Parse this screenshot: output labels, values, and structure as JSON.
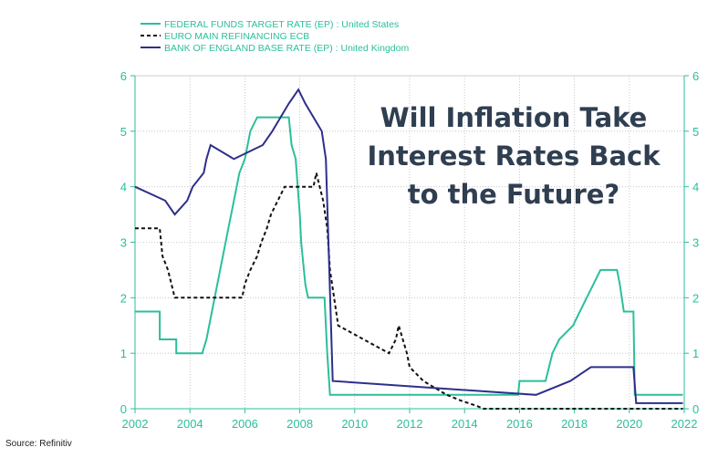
{
  "chart_data": {
    "type": "line",
    "headline": [
      "Will Inflation Take",
      "Interest Rates Back",
      "to the Future?"
    ],
    "source": "Source: Refinitiv",
    "xlim": [
      2002,
      2022
    ],
    "ylim": [
      0,
      6
    ],
    "x_ticks": [
      "2002",
      "2004",
      "2006",
      "2008",
      "2010",
      "2012",
      "2014",
      "2016",
      "2018",
      "2020",
      "2022"
    ],
    "y_ticks": [
      "0",
      "1",
      "2",
      "3",
      "4",
      "5",
      "6"
    ],
    "grid": true,
    "legend_position": "top-left",
    "series": [
      {
        "name": "FEDERAL FUNDS TARGET RATE (EP) : United States",
        "color": "#2bbf9b",
        "style": "solid",
        "x": [
          2002,
          2002.9,
          2002.9,
          2003.5,
          2003.5,
          2004.45,
          2004.6,
          2004.8,
          2005,
          2005.2,
          2005.4,
          2005.6,
          2005.8,
          2006,
          2006.2,
          2006.45,
          2007.6,
          2007.7,
          2007.85,
          2008,
          2008.05,
          2008.2,
          2008.3,
          2008.9,
          2009,
          2009.1,
          2015.95,
          2016,
          2016.95,
          2017.2,
          2017.45,
          2017.95,
          2018.2,
          2018.45,
          2018.7,
          2018.95,
          2019.55,
          2019.65,
          2019.8,
          2020.15,
          2020.2,
          2021.95
        ],
        "values": [
          1.75,
          1.75,
          1.25,
          1.25,
          1.0,
          1.0,
          1.25,
          1.75,
          2.25,
          2.75,
          3.25,
          3.75,
          4.25,
          4.5,
          5.0,
          5.25,
          5.25,
          4.75,
          4.5,
          3.5,
          3.0,
          2.25,
          2.0,
          2.0,
          1.0,
          0.25,
          0.25,
          0.5,
          0.5,
          1.0,
          1.25,
          1.5,
          1.75,
          2.0,
          2.25,
          2.5,
          2.5,
          2.25,
          1.75,
          1.75,
          0.25,
          0.25
        ]
      },
      {
        "name": "EURO MAIN REFINANCING ECB",
        "color": "#111111",
        "style": "dashed",
        "x": [
          2002,
          2002.9,
          2003.0,
          2003.2,
          2003.45,
          2005.9,
          2006.0,
          2006.2,
          2006.45,
          2006.6,
          2006.8,
          2006.95,
          2007.2,
          2007.45,
          2008.5,
          2008.6,
          2008.85,
          2009.0,
          2009.1,
          2009.25,
          2009.4,
          2011.25,
          2011.5,
          2011.6,
          2011.75,
          2011.9,
          2012.0,
          2012.5,
          2013.35,
          2013.85,
          2014.45,
          2014.7,
          2016.2,
          2021.95
        ],
        "values": [
          3.25,
          3.25,
          2.75,
          2.5,
          2.0,
          2.0,
          2.25,
          2.5,
          2.75,
          3.0,
          3.25,
          3.5,
          3.75,
          4.0,
          4.0,
          4.25,
          3.75,
          3.25,
          2.5,
          2.0,
          1.5,
          1.0,
          1.25,
          1.5,
          1.25,
          1.0,
          0.75,
          0.5,
          0.25,
          0.15,
          0.05,
          0.0,
          0.0,
          0.0
        ]
      },
      {
        "name": "BANK OF ENGLAND BASE RATE (EP) : United Kingdom",
        "color": "#2e2f8a",
        "style": "solid",
        "x": [
          2002,
          2003.1,
          2003.45,
          2003.9,
          2004.1,
          2004.5,
          2004.6,
          2004.75,
          2005.6,
          2006.65,
          2007.0,
          2007.3,
          2007.6,
          2007.95,
          2008.2,
          2008.8,
          2008.95,
          2009.2,
          2016.6,
          2017.85,
          2018.6,
          2020.15,
          2020.25,
          2021.95
        ],
        "values": [
          4.0,
          3.75,
          3.5,
          3.75,
          4.0,
          4.25,
          4.5,
          4.75,
          4.5,
          4.75,
          5.0,
          5.25,
          5.5,
          5.75,
          5.5,
          5.0,
          4.5,
          0.5,
          0.25,
          0.5,
          0.75,
          0.75,
          0.1,
          0.1
        ]
      }
    ]
  }
}
